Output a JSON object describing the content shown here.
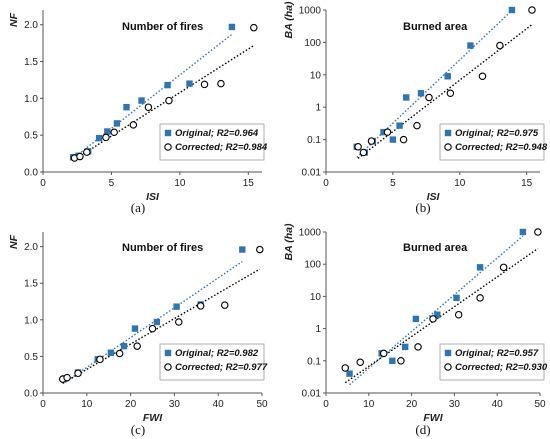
{
  "chart_data": [
    {
      "type": "scatter",
      "panel_label": "(a)",
      "title": "Number of fires",
      "xlabel": "ISI",
      "ylabel": "NF",
      "log_y": false,
      "xlim": [
        0,
        16
      ],
      "ylim": [
        0,
        2.2
      ],
      "xticks": [
        "0",
        "5",
        "10",
        "15"
      ],
      "yticks": [
        "0.0",
        "0.5",
        "1.0",
        "1.5",
        "2.0"
      ],
      "legend_position": "bottom-right",
      "series": [
        {
          "name": "Original; R2=0.964",
          "color": "#2e75b6",
          "marker": "square",
          "x": [
            2.2,
            2.6,
            3.3,
            4.1,
            4.7,
            5.4,
            6.1,
            7.2,
            9.1,
            10.7,
            13.8
          ],
          "y": [
            0.2,
            0.22,
            0.28,
            0.46,
            0.55,
            0.66,
            0.88,
            0.97,
            1.18,
            1.2,
            1.97
          ]
        },
        {
          "name": "Corrected; R2=0.984",
          "color": "#000000",
          "marker": "circle",
          "x": [
            2.3,
            2.7,
            3.2,
            4.6,
            5.2,
            6.6,
            7.7,
            9.2,
            11.8,
            13.0,
            15.4
          ],
          "y": [
            0.19,
            0.21,
            0.27,
            0.47,
            0.54,
            0.64,
            0.88,
            0.97,
            1.19,
            1.2,
            1.96
          ]
        }
      ]
    },
    {
      "type": "scatter",
      "panel_label": "(b)",
      "title": "Burned area",
      "xlabel": "ISI",
      "ylabel": "BA (ha)",
      "log_y": true,
      "xlim": [
        0,
        16
      ],
      "ylim": [
        0.01,
        1000
      ],
      "xticks": [
        "0",
        "5",
        "10",
        "15"
      ],
      "yticks": [
        "0.01",
        "0.1",
        "1",
        "10",
        "100",
        "1000"
      ],
      "legend_position": "bottom-right",
      "series": [
        {
          "name": "Original; R2=0.975",
          "color": "#2e75b6",
          "marker": "square",
          "x": [
            2.3,
            2.9,
            3.5,
            4.3,
            5.0,
            5.5,
            6.0,
            7.1,
            9.1,
            10.8,
            13.9
          ],
          "y": [
            0.06,
            0.04,
            0.09,
            0.17,
            0.1,
            0.27,
            2.0,
            2.7,
            9.0,
            80.0,
            1000.0
          ]
        },
        {
          "name": "Corrected; R2=0.948",
          "color": "#000000",
          "marker": "circle",
          "x": [
            2.4,
            2.8,
            3.4,
            4.6,
            5.8,
            6.8,
            7.7,
            9.3,
            11.7,
            13.0,
            15.4
          ],
          "y": [
            0.06,
            0.04,
            0.09,
            0.17,
            0.1,
            0.27,
            2.0,
            2.7,
            9.0,
            80.0,
            1000.0
          ]
        }
      ]
    },
    {
      "type": "scatter",
      "panel_label": "(c)",
      "title": "Number of fires",
      "xlabel": "FWI",
      "ylabel": "NF",
      "log_y": false,
      "xlim": [
        0,
        50
      ],
      "ylim": [
        0,
        2.2
      ],
      "xticks": [
        "0",
        "10",
        "20",
        "30",
        "40",
        "50"
      ],
      "yticks": [
        "0.0",
        "0.5",
        "1.0",
        "1.5",
        "2.0"
      ],
      "legend_position": "bottom-right",
      "series": [
        {
          "name": "Original; R2=0.982",
          "color": "#2e75b6",
          "marker": "square",
          "x": [
            5.0,
            8.0,
            12.5,
            15.5,
            18.5,
            21.0,
            26.0,
            30.5,
            36.0,
            45.5
          ],
          "y": [
            0.2,
            0.28,
            0.46,
            0.55,
            0.64,
            0.88,
            0.97,
            1.18,
            1.21,
            1.96
          ]
        },
        {
          "name": "Corrected; R2=0.977",
          "color": "#000000",
          "marker": "circle",
          "x": [
            4.5,
            5.5,
            8.0,
            13.0,
            17.5,
            21.5,
            25.0,
            31.0,
            36.0,
            41.5,
            49.5
          ],
          "y": [
            0.19,
            0.21,
            0.27,
            0.46,
            0.54,
            0.64,
            0.88,
            0.97,
            1.19,
            1.2,
            1.96
          ]
        }
      ]
    },
    {
      "type": "scatter",
      "panel_label": "(d)",
      "title": "Burned area",
      "xlabel": "FWI",
      "ylabel": "BA (ha)",
      "log_y": true,
      "xlim": [
        0,
        50
      ],
      "ylim": [
        0.01,
        1000
      ],
      "xticks": [
        "0",
        "10",
        "20",
        "30",
        "40",
        "50"
      ],
      "yticks": [
        "0.01",
        "0.1",
        "1",
        "10",
        "100",
        "1000"
      ],
      "legend_position": "bottom-right",
      "series": [
        {
          "name": "Original; R2=0.957",
          "color": "#2e75b6",
          "marker": "square",
          "x": [
            5.5,
            13.0,
            15.5,
            18.5,
            21.0,
            26.0,
            30.5,
            36.0,
            46.0
          ],
          "y": [
            0.04,
            0.17,
            0.1,
            0.27,
            2.0,
            2.7,
            9.0,
            80.0,
            1000.0
          ]
        },
        {
          "name": "Corrected; R2=0.930",
          "color": "#000000",
          "marker": "circle",
          "x": [
            4.5,
            8.0,
            13.5,
            17.5,
            21.5,
            25.0,
            31.0,
            36.0,
            41.5,
            49.5
          ],
          "y": [
            0.06,
            0.09,
            0.17,
            0.1,
            0.27,
            2.0,
            2.7,
            9.0,
            80.0,
            1000.0
          ]
        }
      ]
    }
  ]
}
